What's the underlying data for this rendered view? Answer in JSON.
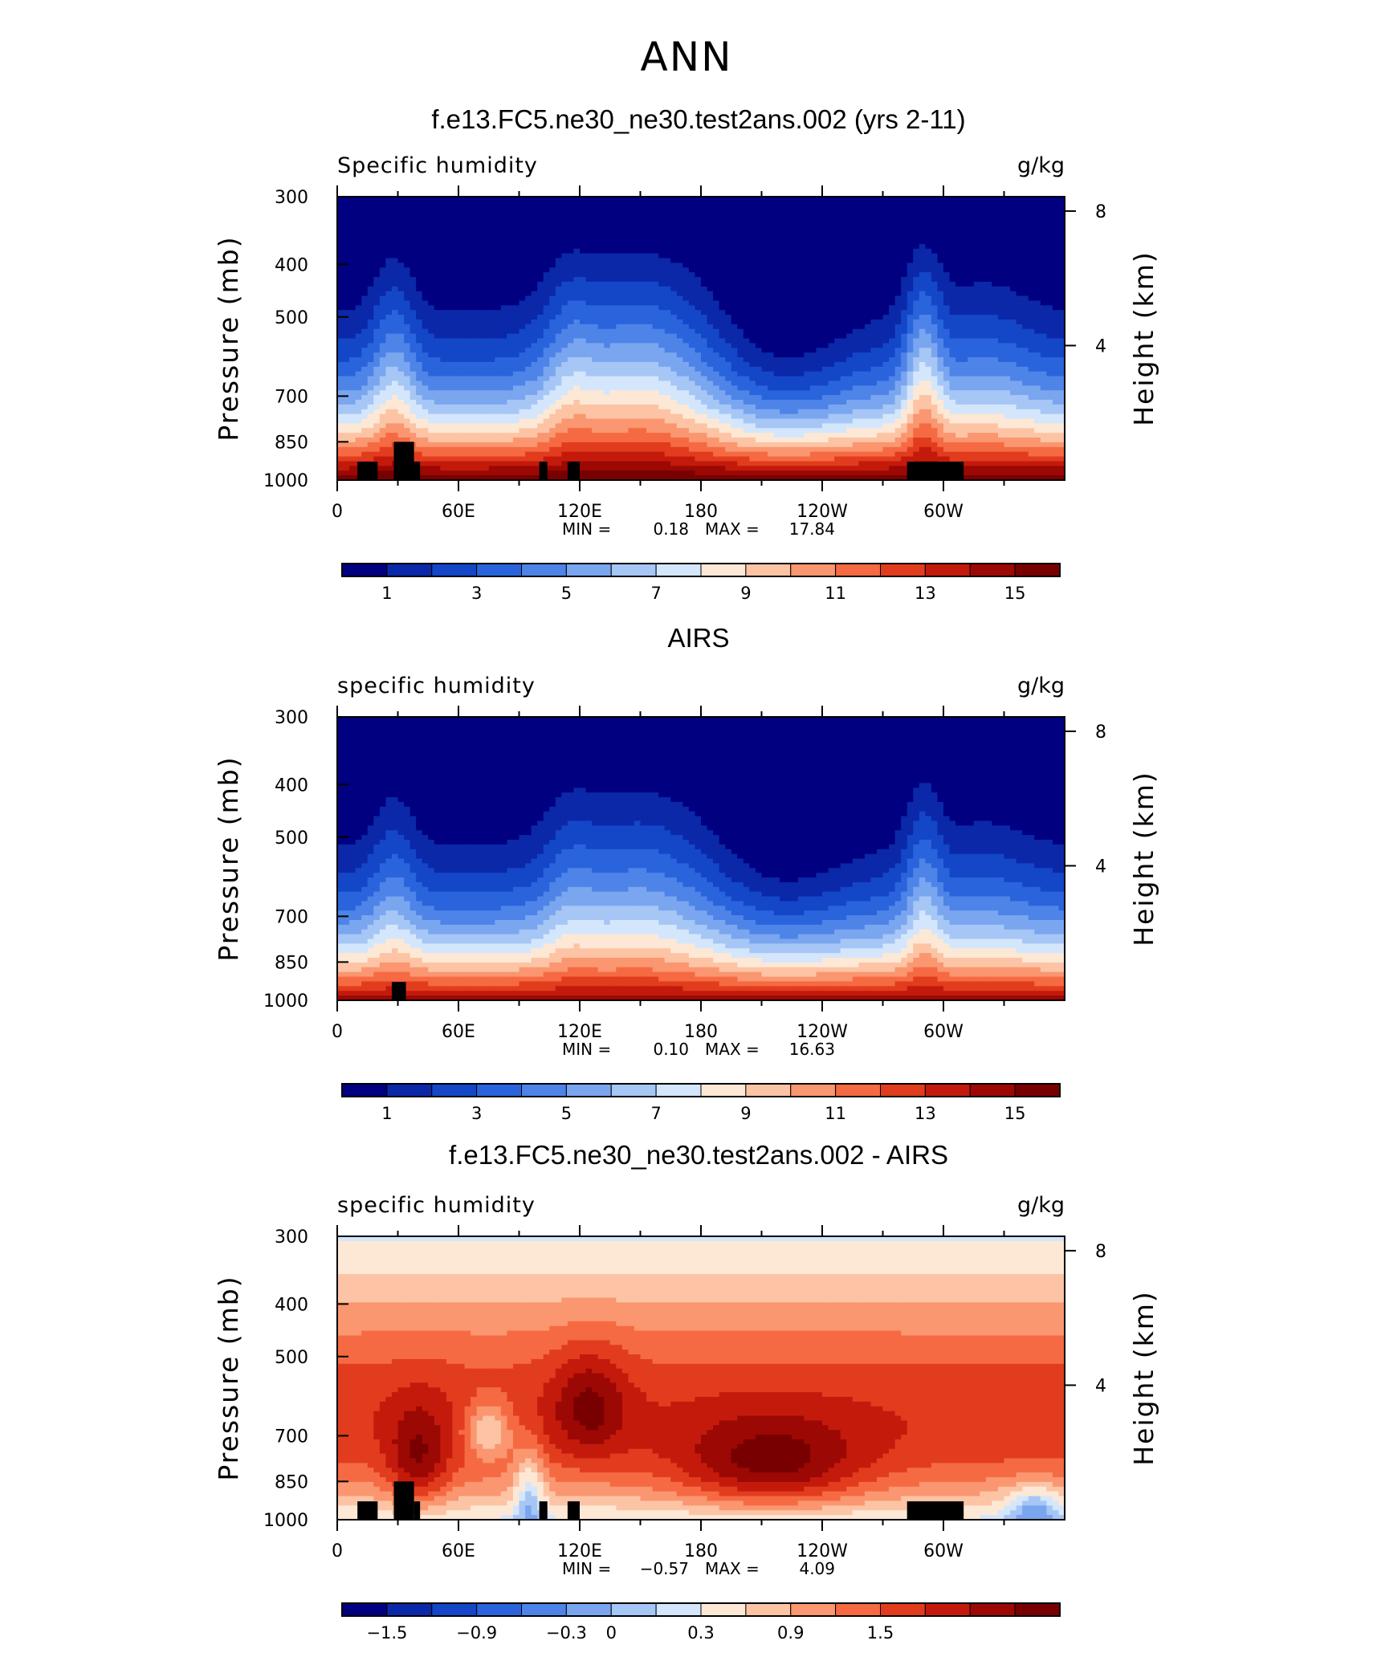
{
  "page": {
    "title": "ANN"
  },
  "colormap": [
    "#000080",
    "#0a28a8",
    "#1446c8",
    "#2a64dc",
    "#4e84e8",
    "#7aa6f0",
    "#a6c6f6",
    "#d4e6fb",
    "#fde8d6",
    "#fcc4a4",
    "#fa9670",
    "#f56a42",
    "#e23c1e",
    "#c41a0c",
    "#9c0804",
    "#780000"
  ],
  "chart_data": [
    {
      "type": "heatmap",
      "title": "f.e13.FC5.ne30_ne30.test2ans.002 (yrs 2-11)",
      "left_label": "Specific humidity",
      "units": "g/kg",
      "ylabel": "Pressure (mb)",
      "ylabel_right": "Height (km)",
      "x_ticks": [
        "0",
        "60E",
        "120E",
        "180",
        "120W",
        "60W"
      ],
      "x_tick_values": [
        0,
        60,
        120,
        180,
        240,
        300
      ],
      "y_ticks": [
        "300",
        "400",
        "500",
        "700",
        "850",
        "1000"
      ],
      "y_tick_values": [
        300,
        400,
        500,
        700,
        850,
        1000
      ],
      "right_ticks": [
        "8",
        "4"
      ],
      "right_tick_values": [
        8,
        4
      ],
      "xlim": [
        0,
        360
      ],
      "ylim": [
        300,
        1000
      ],
      "min_label": "MIN =",
      "min_value": "0.18",
      "max_label": "MAX =",
      "max_value": "17.84",
      "colorbar_levels": [
        0,
        1,
        2,
        3,
        4,
        5,
        6,
        7,
        8,
        9,
        10,
        11,
        12,
        13,
        14,
        15
      ],
      "colorbar_labels": [
        "1",
        "3",
        "5",
        "7",
        "9",
        "11",
        "13",
        "15"
      ],
      "colorbar_label_levels": [
        1,
        3,
        5,
        7,
        9,
        11,
        13,
        15
      ],
      "min": 0.18,
      "max": 17.84,
      "terrain": [
        [
          10,
          850,
          0
        ],
        [
          28,
          850,
          0
        ],
        [
          35,
          850,
          0
        ],
        [
          100,
          850,
          0
        ]
      ]
    },
    {
      "type": "heatmap",
      "title": "AIRS",
      "left_label": "specific humidity",
      "units": "g/kg",
      "ylabel": "Pressure (mb)",
      "ylabel_right": "Height (km)",
      "x_ticks": [
        "0",
        "60E",
        "120E",
        "180",
        "120W",
        "60W"
      ],
      "x_tick_values": [
        0,
        60,
        120,
        180,
        240,
        300
      ],
      "y_ticks": [
        "300",
        "400",
        "500",
        "700",
        "850",
        "1000"
      ],
      "y_tick_values": [
        300,
        400,
        500,
        700,
        850,
        1000
      ],
      "right_ticks": [
        "8",
        "4"
      ],
      "right_tick_values": [
        8,
        4
      ],
      "xlim": [
        0,
        360
      ],
      "ylim": [
        300,
        1000
      ],
      "min_label": "MIN =",
      "min_value": "0.10",
      "max_label": "MAX =",
      "max_value": "16.63",
      "colorbar_levels": [
        0,
        1,
        2,
        3,
        4,
        5,
        6,
        7,
        8,
        9,
        10,
        11,
        12,
        13,
        14,
        15
      ],
      "colorbar_labels": [
        "1",
        "3",
        "5",
        "7",
        "9",
        "11",
        "13",
        "15"
      ],
      "colorbar_label_levels": [
        1,
        3,
        5,
        7,
        9,
        11,
        13,
        15
      ],
      "min": 0.1,
      "max": 16.63
    },
    {
      "type": "heatmap",
      "title": "f.e13.FC5.ne30_ne30.test2ans.002 - AIRS",
      "left_label": "specific humidity",
      "units": "g/kg",
      "ylabel": "Pressure (mb)",
      "ylabel_right": "Height (km)",
      "x_ticks": [
        "0",
        "60E",
        "120E",
        "180",
        "120W",
        "60W"
      ],
      "x_tick_values": [
        0,
        60,
        120,
        180,
        240,
        300
      ],
      "y_ticks": [
        "300",
        "400",
        "500",
        "700",
        "850",
        "1000"
      ],
      "y_tick_values": [
        300,
        400,
        500,
        700,
        850,
        1000
      ],
      "right_ticks": [
        "8",
        "4"
      ],
      "right_tick_values": [
        8,
        4
      ],
      "xlim": [
        0,
        360
      ],
      "ylim": [
        300,
        1000
      ],
      "min_label": "MIN =",
      "min_value": "−0.57",
      "max_label": "MAX =",
      "max_value": "4.09",
      "colorbar_levels": [
        -1.8,
        -1.5,
        -1.2,
        -0.9,
        -0.6,
        -0.3,
        0,
        0.15,
        0.3,
        0.6,
        0.9,
        1.2,
        1.5,
        1.8,
        2.1,
        2.4
      ],
      "colorbar_labels": [
        "−1.5",
        "−0.9",
        "−0.3",
        "0",
        "0.3",
        "0.9",
        "1.5"
      ],
      "colorbar_label_levels": [
        -1.5,
        -0.9,
        -0.3,
        0,
        0.3,
        0.9,
        1.5
      ],
      "min": -0.57,
      "max": 4.09
    }
  ]
}
